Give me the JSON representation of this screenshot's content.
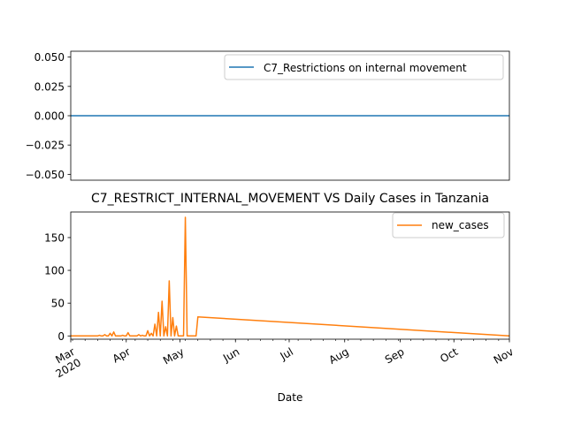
{
  "chart_data": [
    {
      "type": "line",
      "title": "",
      "xlabel": "",
      "ylabel": "",
      "ylim": [
        -0.055,
        0.055
      ],
      "y_ticks": [
        0.05,
        0.025,
        0.0,
        -0.025,
        -0.05
      ],
      "y_tick_labels": [
        "0.050",
        "0.025",
        "0.000",
        "−0.025",
        "−0.050"
      ],
      "xlim": [
        "2020-03-01",
        "2020-11-01"
      ],
      "grid": false,
      "legend_position": "upper right",
      "series": [
        {
          "name": "C7_Restrictions on internal movement",
          "color": "#1f77b4",
          "x": [
            "2020-03-01",
            "2020-11-01"
          ],
          "values": [
            0,
            0
          ]
        }
      ]
    },
    {
      "type": "line",
      "title": "C7_RESTRICT_INTERNAL_MOVEMENT VS Daily Cases in Tanzania",
      "xlabel": "Date",
      "ylabel": "",
      "ylim": [
        -5,
        189
      ],
      "y_ticks": [
        0,
        50,
        100,
        150
      ],
      "y_tick_labels": [
        "0",
        "50",
        "100",
        "150"
      ],
      "xlim": [
        "2020-03-01",
        "2020-11-01"
      ],
      "x_ticks": [
        "2020-03-01",
        "2020-04-01",
        "2020-05-01",
        "2020-06-01",
        "2020-07-01",
        "2020-08-01",
        "2020-09-01",
        "2020-10-01",
        "2020-11-01"
      ],
      "x_tick_labels": [
        [
          "Mar",
          "2020"
        ],
        [
          "Apr"
        ],
        [
          "May"
        ],
        [
          "Jun"
        ],
        [
          "Jul"
        ],
        [
          "Aug"
        ],
        [
          "Sep"
        ],
        [
          "Oct"
        ],
        [
          "Nov"
        ]
      ],
      "grid": false,
      "legend_position": "upper right",
      "series": [
        {
          "name": "new_cases",
          "color": "#ff7f0e",
          "x": [
            "2020-03-01",
            "2020-03-16",
            "2020-03-17",
            "2020-03-18",
            "2020-03-19",
            "2020-03-20",
            "2020-03-21",
            "2020-03-22",
            "2020-03-23",
            "2020-03-24",
            "2020-03-25",
            "2020-03-26",
            "2020-03-27",
            "2020-03-28",
            "2020-03-29",
            "2020-03-30",
            "2020-03-31",
            "2020-04-01",
            "2020-04-02",
            "2020-04-03",
            "2020-04-04",
            "2020-04-05",
            "2020-04-06",
            "2020-04-07",
            "2020-04-08",
            "2020-04-09",
            "2020-04-10",
            "2020-04-11",
            "2020-04-12",
            "2020-04-13",
            "2020-04-14",
            "2020-04-15",
            "2020-04-16",
            "2020-04-17",
            "2020-04-18",
            "2020-04-19",
            "2020-04-20",
            "2020-04-21",
            "2020-04-22",
            "2020-04-23",
            "2020-04-24",
            "2020-04-25",
            "2020-04-26",
            "2020-04-27",
            "2020-04-28",
            "2020-04-29",
            "2020-04-30",
            "2020-05-01",
            "2020-05-02",
            "2020-05-03",
            "2020-05-04",
            "2020-05-05",
            "2020-05-06",
            "2020-05-07",
            "2020-05-08",
            "2020-05-09",
            "2020-05-10",
            "2020-05-11",
            "2020-11-01"
          ],
          "values": [
            0,
            0,
            1,
            0,
            0,
            2,
            0,
            0,
            4,
            0,
            6,
            0,
            0,
            0,
            0,
            1,
            0,
            0,
            5,
            0,
            0,
            0,
            0,
            0,
            2,
            0,
            1,
            0,
            0,
            8,
            0,
            4,
            0,
            18,
            0,
            36,
            0,
            53,
            0,
            14,
            0,
            84,
            0,
            28,
            0,
            15,
            0,
            0,
            0,
            0,
            181,
            0,
            0,
            0,
            0,
            0,
            0,
            29,
            0
          ]
        }
      ]
    }
  ]
}
